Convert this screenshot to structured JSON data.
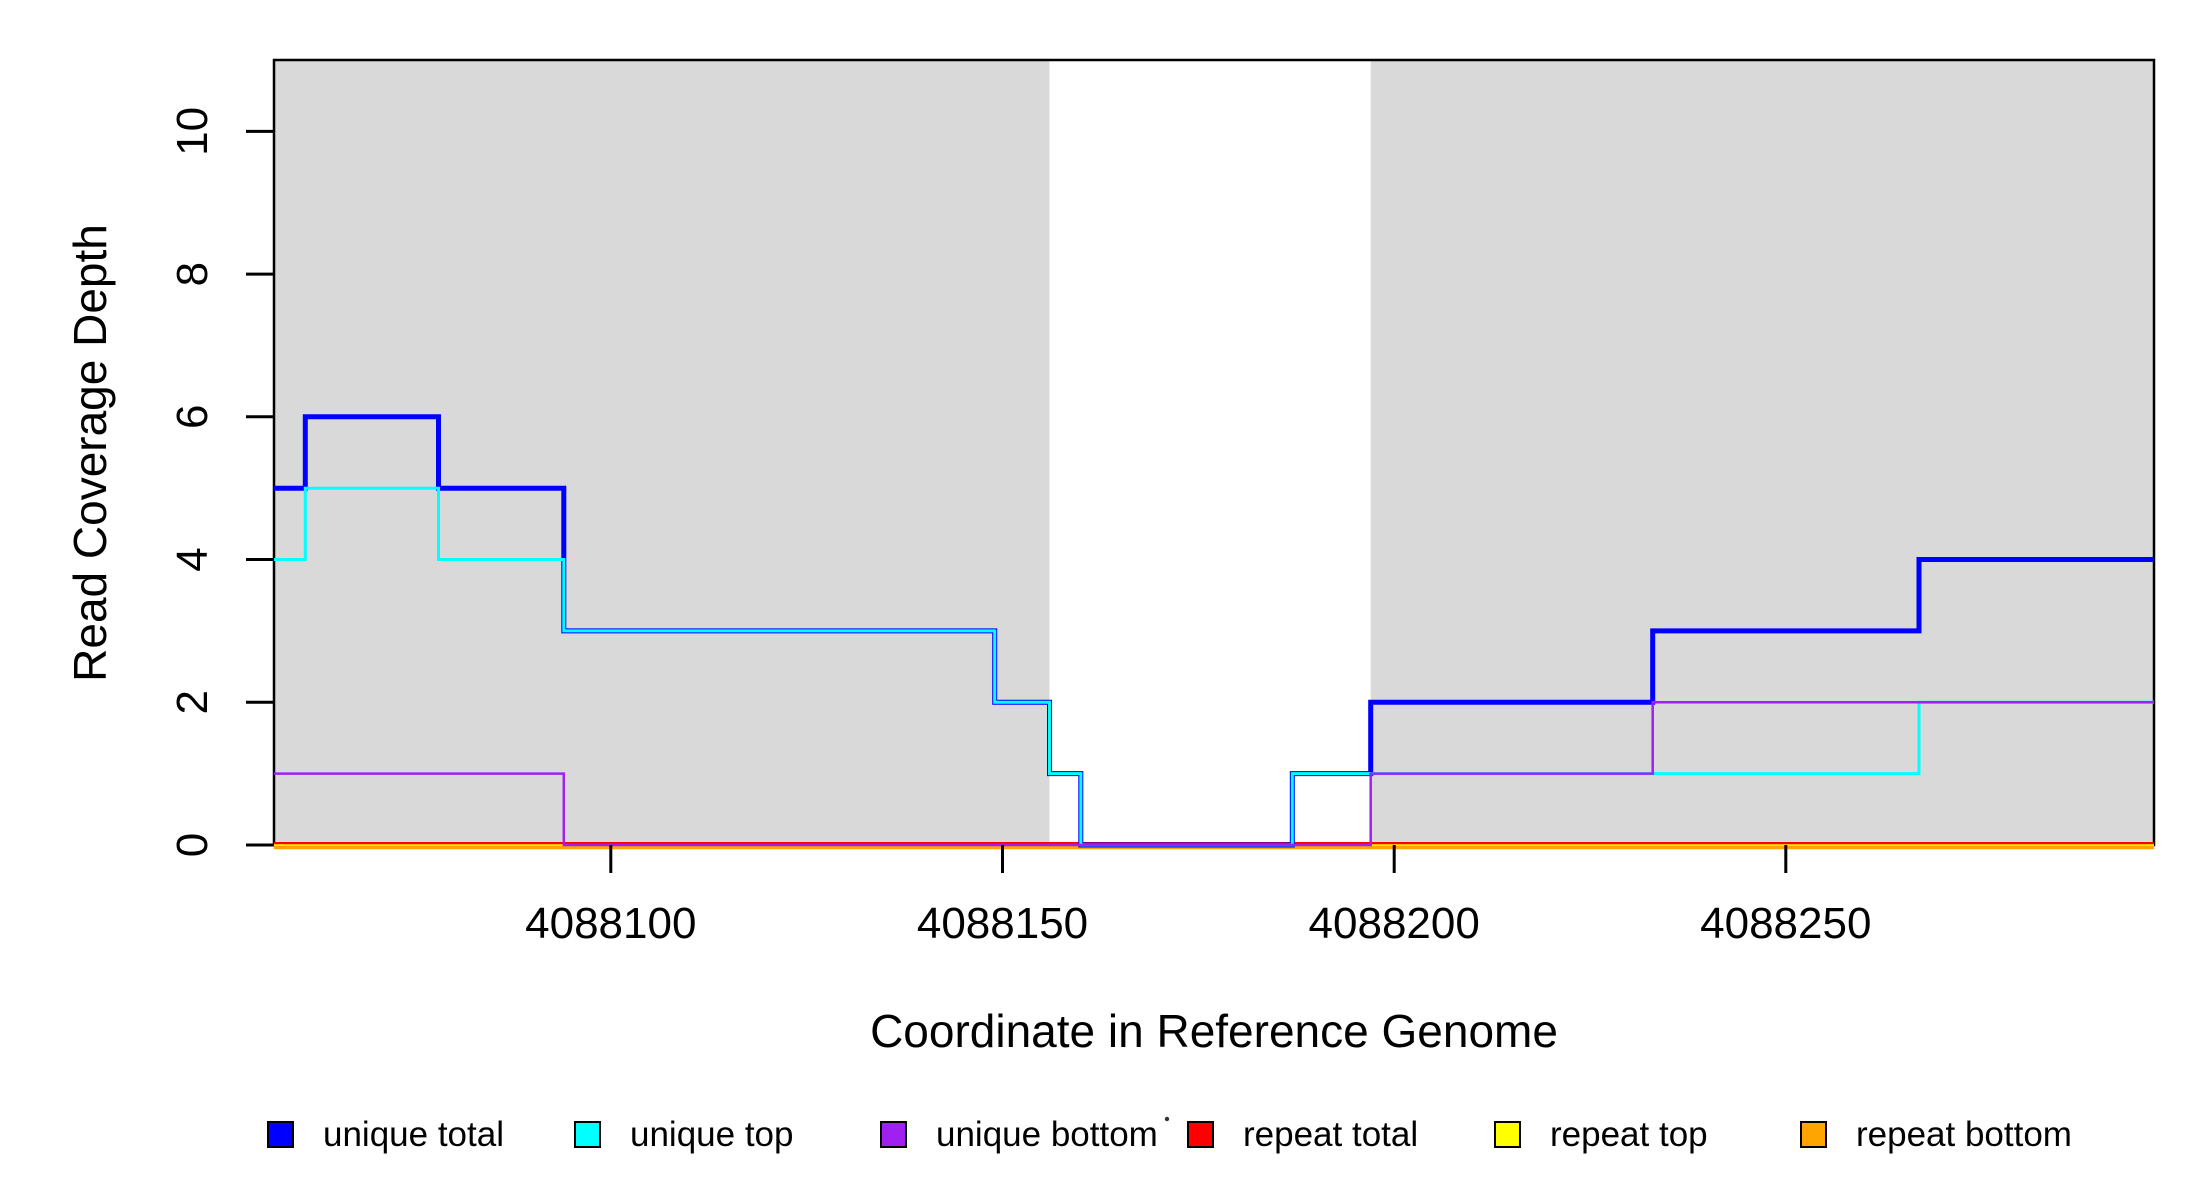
{
  "figure": {
    "background": "#ffffff",
    "plot_background": "#ffffff",
    "shaded_band_color": "#d9d9d9",
    "box_color": "#000000",
    "stray_dot": {
      "present": true
    }
  },
  "chart_data": {
    "type": "line",
    "subtype": "step-coverage",
    "title": "",
    "xlabel": "Coordinate in Reference Genome",
    "ylabel": "Read Coverage Depth",
    "xlim": [
      4088057,
      4088297
    ],
    "ylim": [
      0,
      11
    ],
    "x_ticks": [
      4088100,
      4088150,
      4088200,
      4088250
    ],
    "x_tick_labels": [
      "4088100",
      "4088150",
      "4088200",
      "4088250"
    ],
    "y_ticks": [
      0,
      2,
      4,
      6,
      8,
      10
    ],
    "y_tick_labels": [
      "0",
      "2",
      "4",
      "6",
      "8",
      "10"
    ],
    "grid": false,
    "legend_position": "bottom",
    "shaded_regions": [
      {
        "x0": 4088057,
        "x1": 4088156,
        "color": "#d9d9d9"
      },
      {
        "x0": 4088197,
        "x1": 4088297,
        "color": "#d9d9d9"
      }
    ],
    "series": [
      {
        "name": "unique total",
        "color": "#0000ff",
        "lwd": 5,
        "steps": [
          [
            4088057,
            5
          ],
          [
            4088061,
            6
          ],
          [
            4088078,
            5
          ],
          [
            4088094,
            3
          ],
          [
            4088149,
            2
          ],
          [
            4088156,
            1
          ],
          [
            4088160,
            0
          ],
          [
            4088187,
            1
          ],
          [
            4088197,
            2
          ],
          [
            4088233,
            3
          ],
          [
            4088267,
            4
          ]
        ],
        "end": 4088297
      },
      {
        "name": "unique top",
        "color": "#00ffff",
        "lwd": 3,
        "steps": [
          [
            4088057,
            4
          ],
          [
            4088061,
            5
          ],
          [
            4088078,
            4
          ],
          [
            4088094,
            3
          ],
          [
            4088149,
            2
          ],
          [
            4088156,
            1
          ],
          [
            4088160,
            0
          ],
          [
            4088187,
            1
          ],
          [
            4088267,
            2
          ]
        ],
        "end": 4088297
      },
      {
        "name": "unique bottom",
        "color": "#a020f0",
        "lwd": 2.5,
        "steps": [
          [
            4088057,
            1
          ],
          [
            4088094,
            0
          ],
          [
            4088197,
            1
          ],
          [
            4088233,
            2
          ]
        ],
        "end": 4088297
      },
      {
        "name": "repeat total",
        "color": "#ff0000",
        "lwd": 3,
        "steps": [
          [
            4088057,
            0
          ]
        ],
        "end": 4088297
      },
      {
        "name": "repeat top",
        "color": "#ffff00",
        "lwd": 2.5,
        "steps": [
          [
            4088057,
            0
          ]
        ],
        "end": 4088297
      },
      {
        "name": "repeat bottom",
        "color": "#ffa500",
        "lwd": 3.5,
        "steps": [
          [
            4088057,
            0
          ]
        ],
        "end": 4088297
      }
    ],
    "draw_order": [
      "repeat total",
      "repeat top",
      "repeat bottom",
      "unique total",
      "unique top",
      "unique bottom"
    ],
    "legend": [
      {
        "label": "unique total",
        "color": "#0000ff"
      },
      {
        "label": "unique top",
        "color": "#00ffff"
      },
      {
        "label": "unique bottom",
        "color": "#a020f0"
      },
      {
        "label": "repeat total",
        "color": "#ff0000"
      },
      {
        "label": "repeat top",
        "color": "#ffff00"
      },
      {
        "label": "repeat bottom",
        "color": "#ffa500"
      }
    ]
  }
}
